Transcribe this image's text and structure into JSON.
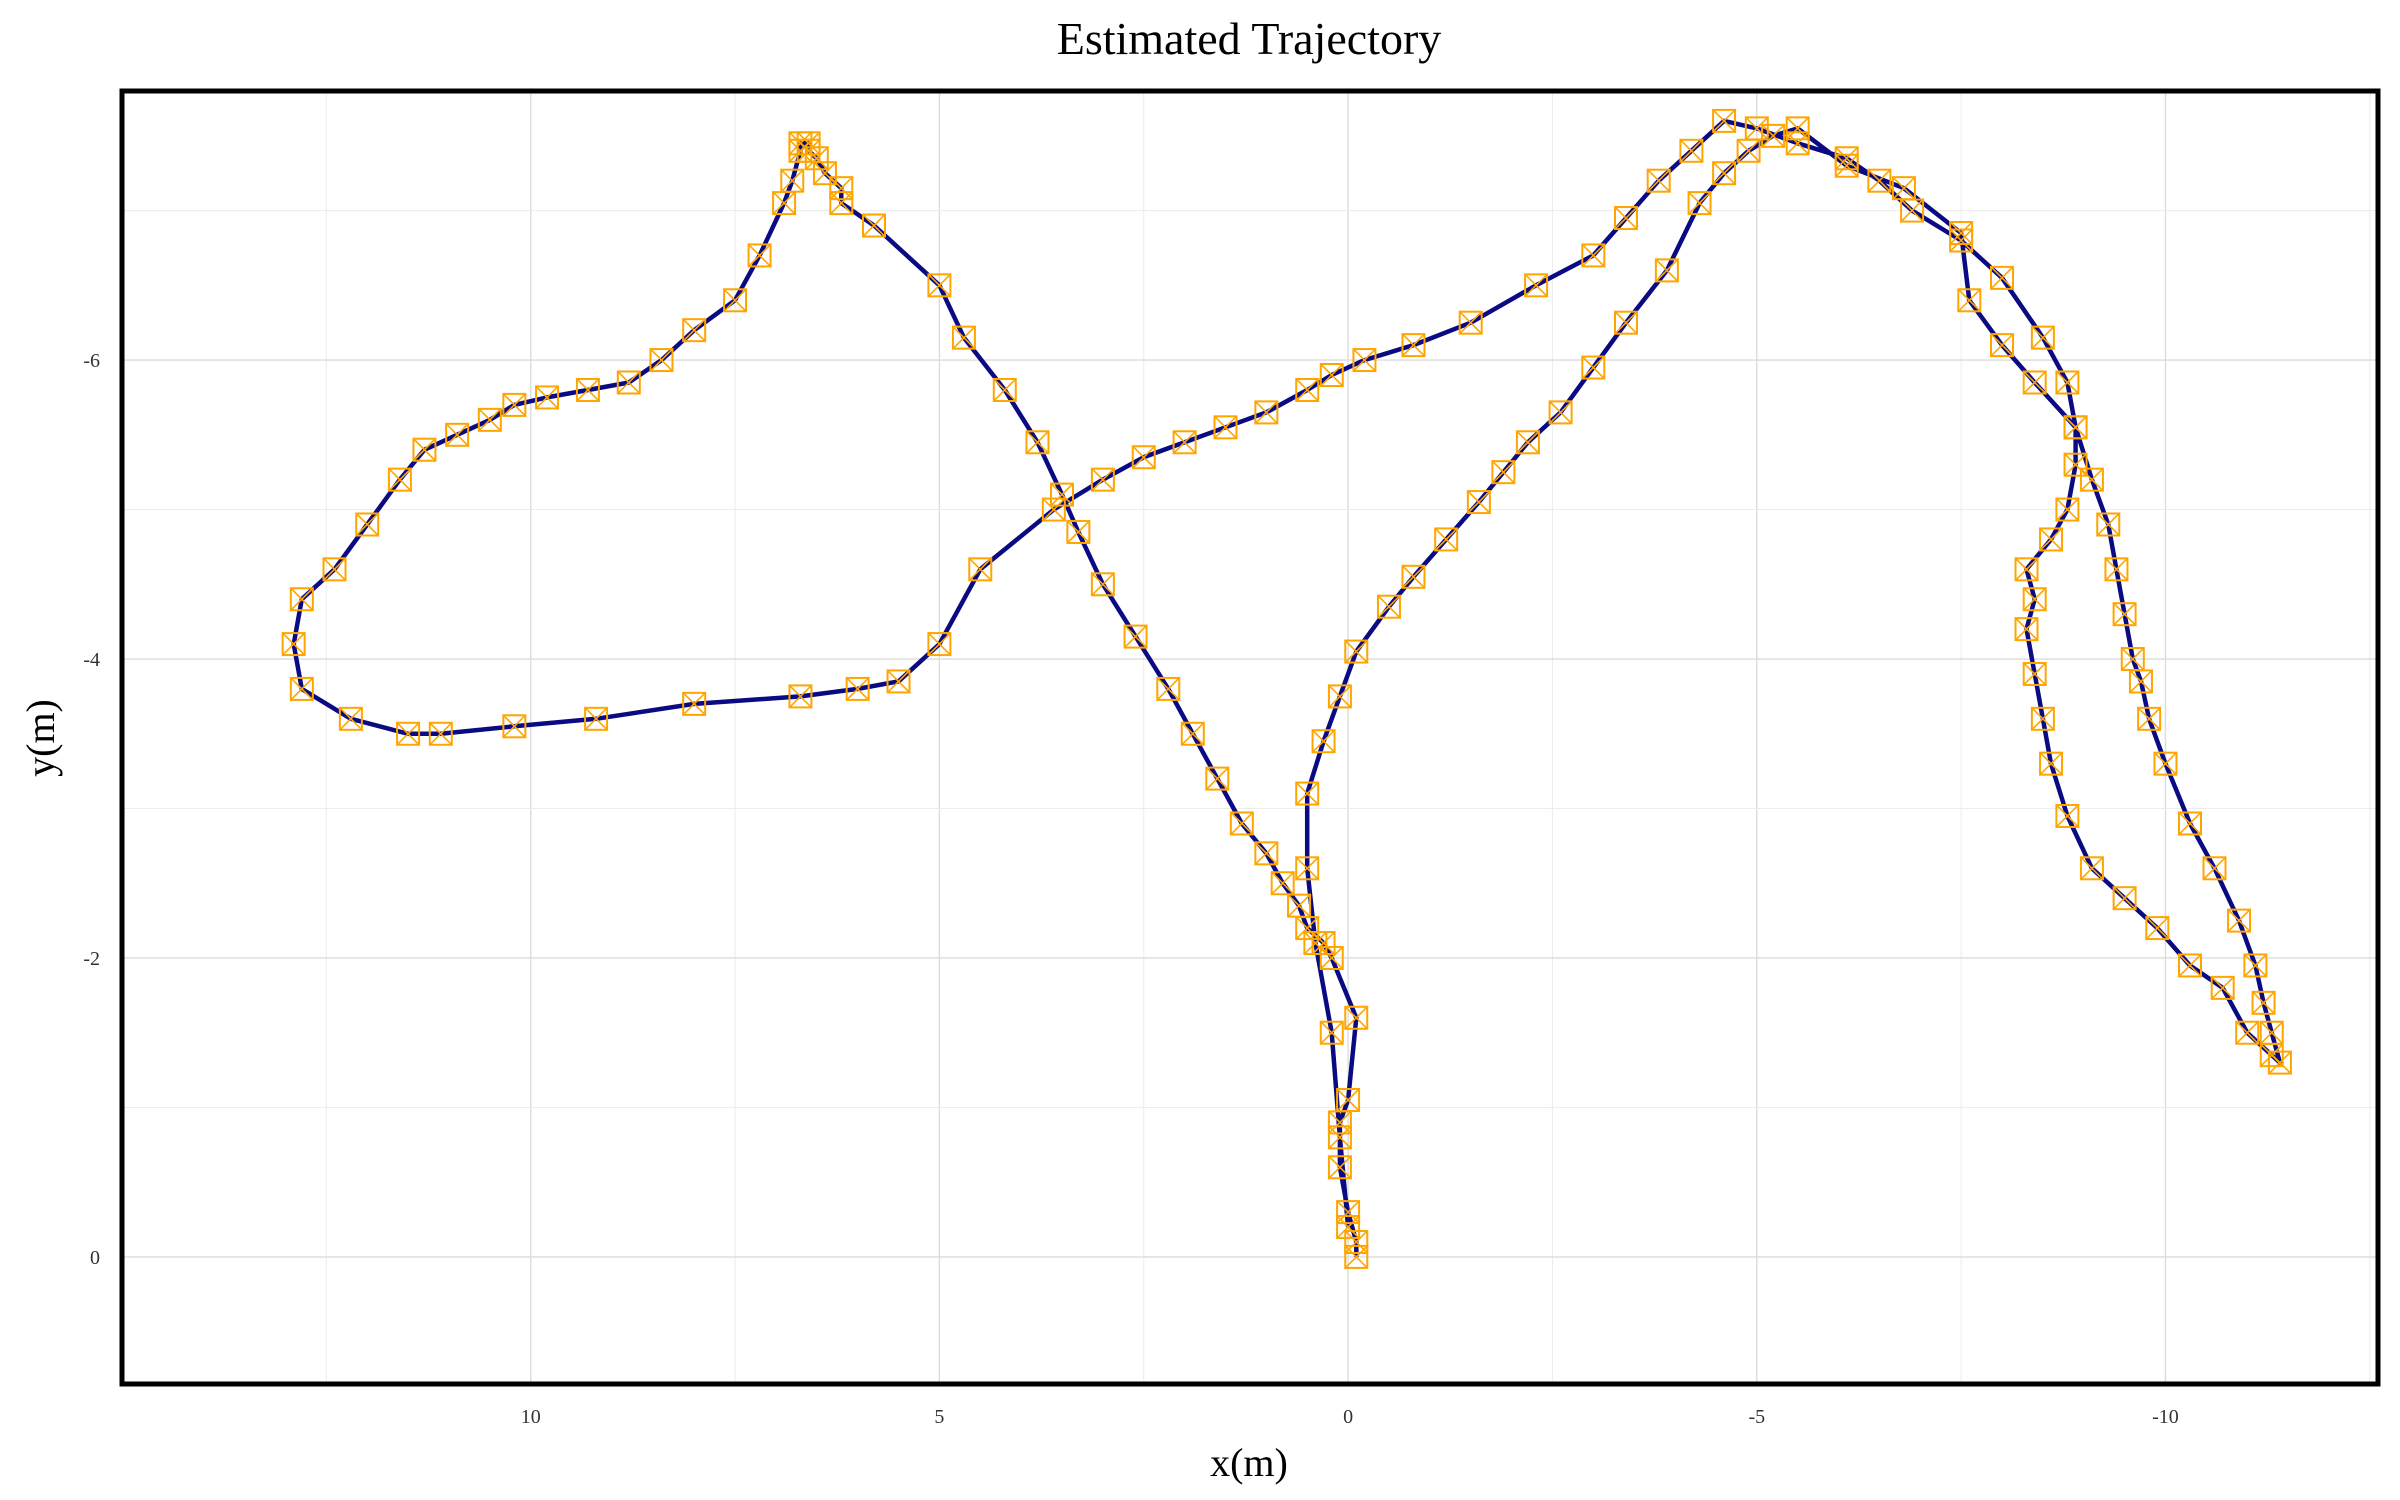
{
  "chart_data": {
    "type": "line",
    "title": "Estimated Trajectory",
    "xlabel": "x(m)",
    "ylabel": "y(m)",
    "x_reversed": true,
    "y_reversed": true,
    "xlim": [
      15.0,
      -12.6
    ],
    "ylim": [
      0.85,
      -7.8
    ],
    "xticks": [
      10,
      5,
      0,
      -5,
      -10
    ],
    "yticks": [
      0,
      -2,
      -4,
      -6
    ],
    "xtick_labels": [
      "10",
      "5",
      "0",
      "-5",
      "-10"
    ],
    "ytick_labels": [
      "0",
      "-2",
      "-4",
      "-6"
    ],
    "grid": true,
    "line_color": "#0a0a82",
    "marker_color": "#ffa500",
    "marker": "square-x",
    "series": [
      {
        "x": [
          -0.1,
          -0.1,
          0.0,
          0.1,
          0.1,
          0.0,
          -0.1,
          0.2,
          0.3,
          0.5,
          0.6,
          0.8,
          1.0,
          1.3,
          1.6,
          1.9,
          2.2,
          2.6,
          3.0,
          3.3,
          3.5,
          3.8,
          4.2,
          4.7,
          5.0,
          5.8,
          6.2,
          6.2,
          6.4,
          6.5,
          6.6,
          6.6,
          6.7,
          6.7,
          6.8,
          6.9,
          7.2,
          7.5,
          8.0,
          8.4,
          8.8,
          9.3,
          9.8,
          10.2,
          10.5,
          10.9,
          11.3,
          11.6,
          12.0,
          12.4,
          12.8,
          12.9,
          12.8,
          12.2,
          11.5,
          11.1,
          10.2,
          9.2,
          8.0,
          6.7,
          6.0,
          5.5,
          5.0,
          4.5,
          3.6,
          3.0,
          2.5,
          2.0,
          1.5,
          1.0,
          0.5,
          0.2,
          -0.2,
          -0.8,
          -1.5,
          -2.3,
          -3.0,
          -3.4,
          -3.8,
          -4.2,
          -4.6,
          -5.0,
          -5.5,
          -6.1,
          -6.5,
          -6.9,
          -7.5,
          -8.0,
          -8.5,
          -8.8,
          -8.9,
          -9.1,
          -9.3,
          -9.4,
          -9.5,
          -9.6,
          -9.7,
          -9.8,
          -10.0,
          -10.3,
          -10.6,
          -10.9,
          -11.1,
          -11.2,
          -11.3,
          -11.4,
          -11.3,
          -11.0,
          -10.7,
          -10.3,
          -9.9,
          -9.5,
          -9.1,
          -8.8,
          -8.6,
          -8.5,
          -8.4,
          -8.3,
          -8.4,
          -8.3,
          -8.6,
          -8.8,
          -8.9,
          -8.9,
          -8.4,
          -8.0,
          -7.6,
          -7.5,
          -6.8,
          -6.1,
          -5.5,
          -5.2,
          -4.9,
          -4.6,
          -4.3,
          -3.9,
          -3.4,
          -3.0,
          -2.6,
          -2.2,
          -1.9,
          -1.6,
          -1.2,
          -0.8,
          -0.5,
          -0.1,
          0.1,
          0.3,
          0.5,
          0.5,
          0.4,
          0.2,
          0.1,
          0.0
        ],
        "y": [
          0.0,
          -0.1,
          -0.3,
          -0.6,
          -0.9,
          -1.05,
          -1.6,
          -2.0,
          -2.1,
          -2.2,
          -2.35,
          -2.5,
          -2.7,
          -2.9,
          -3.2,
          -3.5,
          -3.8,
          -4.15,
          -4.5,
          -4.85,
          -5.1,
          -5.45,
          -5.8,
          -6.15,
          -6.5,
          -6.9,
          -7.05,
          -7.15,
          -7.25,
          -7.35,
          -7.4,
          -7.45,
          -7.45,
          -7.4,
          -7.2,
          -7.05,
          -6.7,
          -6.4,
          -6.2,
          -6.0,
          -5.85,
          -5.8,
          -5.75,
          -5.7,
          -5.6,
          -5.5,
          -5.4,
          -5.2,
          -4.9,
          -4.6,
          -4.4,
          -4.1,
          -3.8,
          -3.6,
          -3.5,
          -3.5,
          -3.55,
          -3.6,
          -3.7,
          -3.75,
          -3.8,
          -3.85,
          -4.1,
          -4.6,
          -5.0,
          -5.2,
          -5.35,
          -5.45,
          -5.55,
          -5.65,
          -5.8,
          -5.9,
          -6.0,
          -6.1,
          -6.25,
          -6.5,
          -6.7,
          -6.95,
          -7.2,
          -7.4,
          -7.6,
          -7.55,
          -7.45,
          -7.35,
          -7.2,
          -7.0,
          -6.8,
          -6.55,
          -6.15,
          -5.85,
          -5.55,
          -5.2,
          -4.9,
          -4.6,
          -4.3,
          -4.0,
          -3.85,
          -3.6,
          -3.3,
          -2.9,
          -2.6,
          -2.25,
          -1.95,
          -1.7,
          -1.5,
          -1.3,
          -1.35,
          -1.5,
          -1.8,
          -1.95,
          -2.2,
          -2.4,
          -2.6,
          -2.95,
          -3.3,
          -3.6,
          -3.9,
          -4.2,
          -4.4,
          -4.6,
          -4.8,
          -5.0,
          -5.3,
          -5.55,
          -5.85,
          -6.1,
          -6.4,
          -6.85,
          -7.15,
          -7.3,
          -7.55,
          -7.5,
          -7.4,
          -7.25,
          -7.05,
          -6.6,
          -6.25,
          -5.95,
          -5.65,
          -5.45,
          -5.25,
          -5.05,
          -4.8,
          -4.55,
          -4.35,
          -4.05,
          -3.75,
          -3.45,
          -3.1,
          -2.6,
          -2.1,
          -1.5,
          -0.8,
          -0.2
        ]
      }
    ]
  }
}
